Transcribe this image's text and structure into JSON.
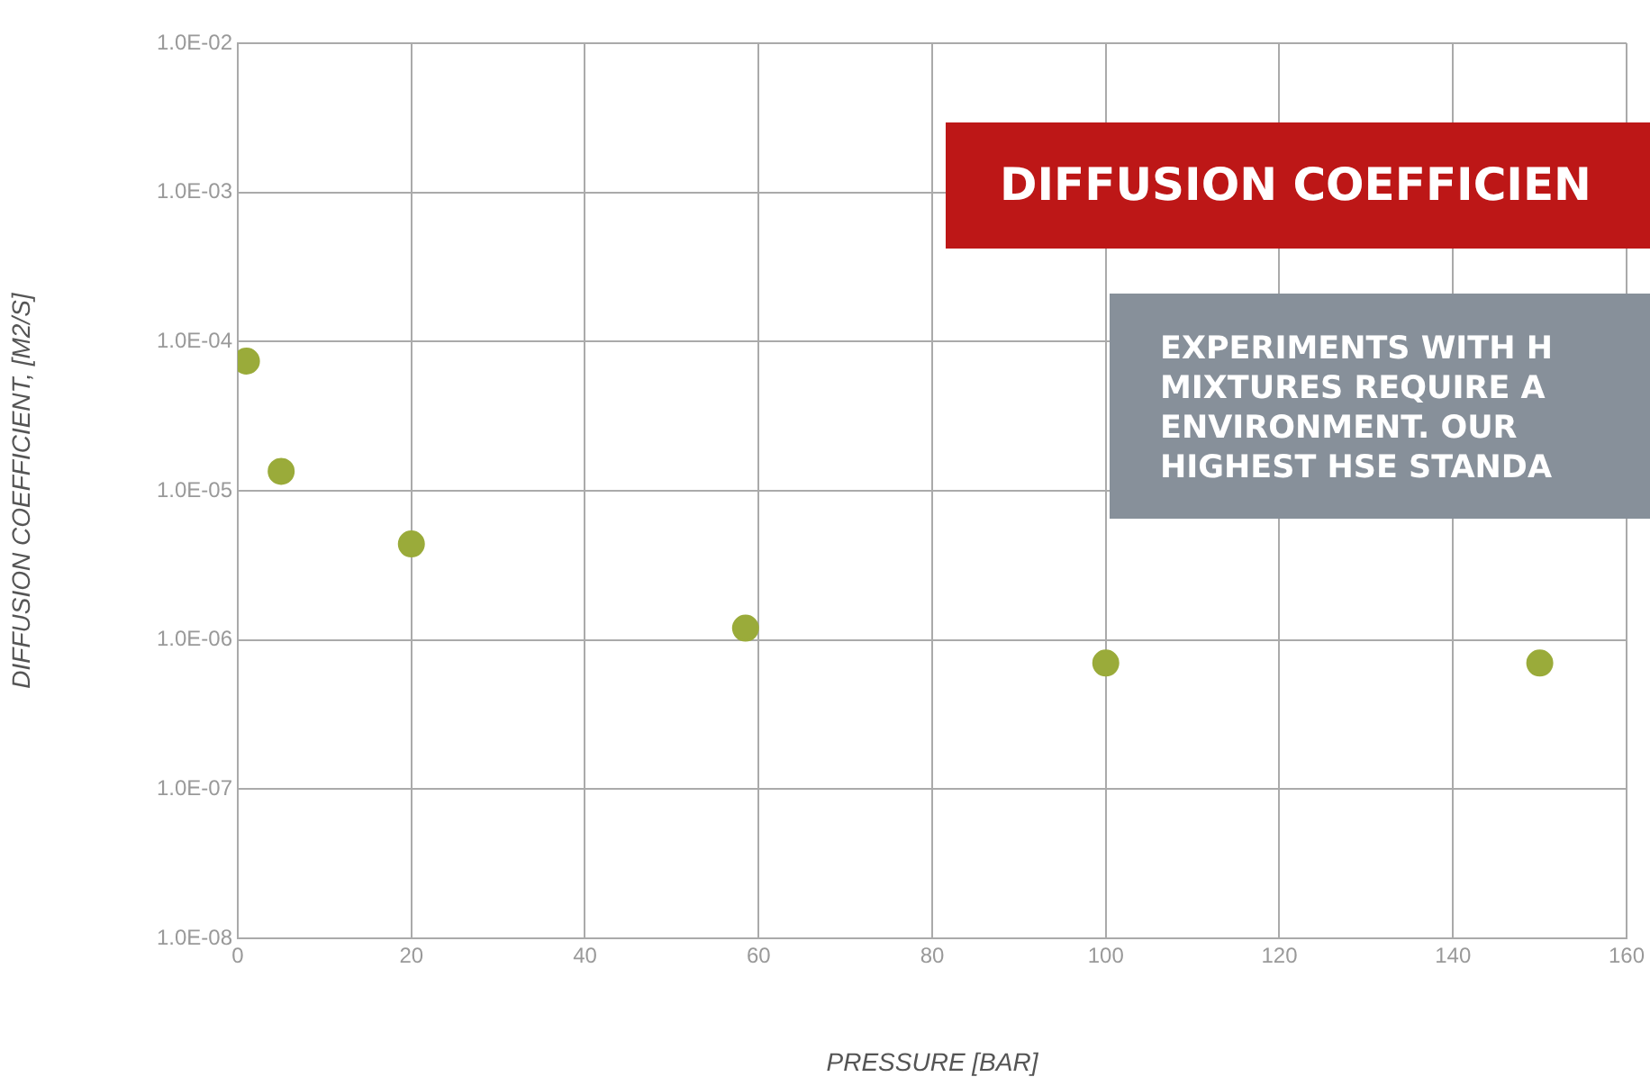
{
  "chart_data": {
    "type": "scatter",
    "title": "DIFFUSION COEFFICIEN",
    "xlabel": "PRESSURE [BAR]",
    "ylabel": "DIFFUSION COEFFICIENT, [M2/S]",
    "annotations": [
      "EXPERIMENTS WITH H\nMIXTURES REQUIRE A\nENVIRONMENT. OUR\nHIGHEST HSE STANDA"
    ],
    "x": [
      1,
      5,
      20,
      58.5,
      100,
      150
    ],
    "series": [
      {
        "color": "#9aab3a",
        "values": [
          7.4e-05,
          1.35e-05,
          4.4e-06,
          1.2e-06,
          7e-07,
          7e-07
        ]
      }
    ],
    "log": "y",
    "xlim": [
      0,
      160
    ],
    "xticks": [
      0,
      20,
      40,
      60,
      80,
      100,
      120,
      140,
      160
    ],
    "ylim": [
      1e-08,
      0.01
    ],
    "yticks": [
      {
        "value": 1e-08,
        "label": "1.0E-08"
      },
      {
        "value": 1e-07,
        "label": "1.0E-07"
      },
      {
        "value": 1e-06,
        "label": "1.0E-06"
      },
      {
        "value": 1e-05,
        "label": "1.0E-05"
      },
      {
        "value": 0.0001,
        "label": "1.0E-04"
      },
      {
        "value": 0.001,
        "label": "1.0E-03"
      },
      {
        "value": 0.01,
        "label": "1.0E-02"
      }
    ],
    "grid": true,
    "legend": false,
    "marker": "circle"
  }
}
